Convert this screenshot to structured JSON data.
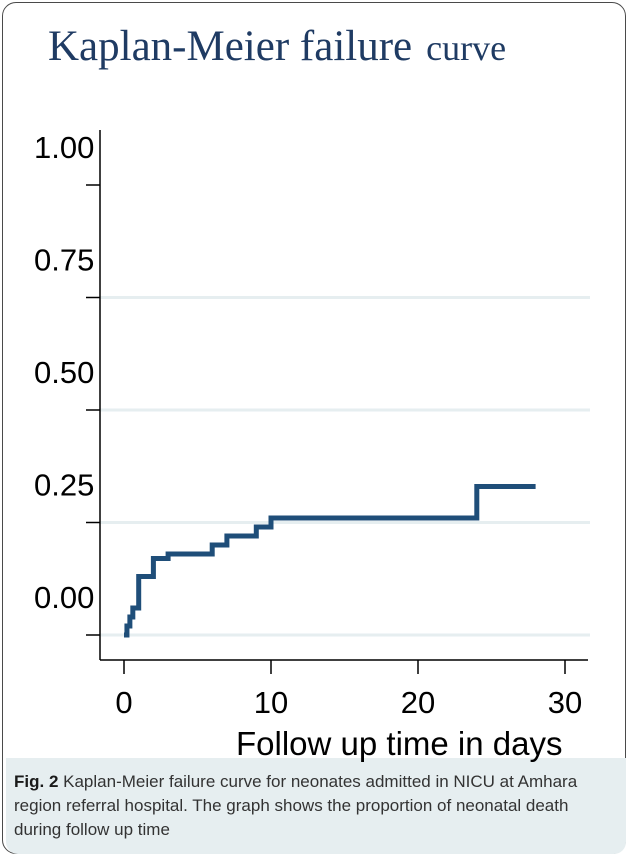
{
  "figure": {
    "title_main": "Kaplan-Meier failure",
    "title_tail": "curve",
    "caption_label": "Fig. 2",
    "caption_text": "Kaplan-Meier failure curve for neonates admitted in NICU at Amhara region referral hospital. The graph shows the proportion of neonatal death during follow up time"
  },
  "chart_data": {
    "type": "line",
    "title": "Kaplan-Meier failure curve",
    "xlabel": "Follow up time in days",
    "ylabel": "",
    "x_ticks": [
      "0",
      "10",
      "20",
      "30"
    ],
    "y_ticks": [
      "0.00",
      "0.25",
      "0.50",
      "0.75",
      "1.00"
    ],
    "xlim": [
      0,
      30
    ],
    "ylim": [
      0,
      1
    ],
    "grid": true,
    "step": true,
    "colors": {
      "line": "#1f4e79",
      "grid": "#e6eef0"
    },
    "series": [
      {
        "values": [
          {
            "x": 0.0,
            "y": 0.0
          },
          {
            "x": 0.2,
            "y": 0.02
          },
          {
            "x": 0.4,
            "y": 0.04
          },
          {
            "x": 0.6,
            "y": 0.06
          },
          {
            "x": 1.0,
            "y": 0.13
          },
          {
            "x": 2.0,
            "y": 0.17
          },
          {
            "x": 3.0,
            "y": 0.18
          },
          {
            "x": 6.0,
            "y": 0.2
          },
          {
            "x": 7.0,
            "y": 0.22
          },
          {
            "x": 9.0,
            "y": 0.24
          },
          {
            "x": 10.0,
            "y": 0.26
          },
          {
            "x": 24.0,
            "y": 0.33
          },
          {
            "x": 28.0,
            "y": 0.33
          }
        ]
      }
    ]
  }
}
